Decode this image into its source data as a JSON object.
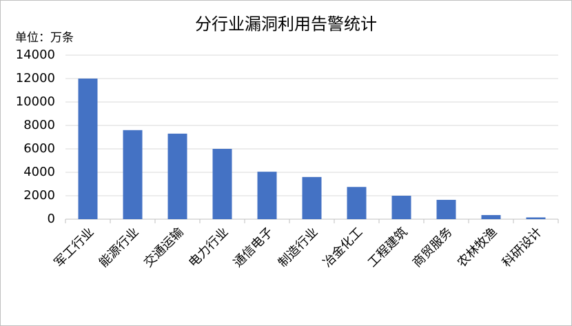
{
  "chart_data": {
    "type": "bar",
    "title": "分行业漏洞利用告警统计",
    "unit_label": "单位：万条",
    "categories": [
      "军工行业",
      "能源行业",
      "交通运输",
      "电力行业",
      "通信电子",
      "制造行业",
      "冶金化工",
      "工程建筑",
      "商贸服务",
      "农林牧渔",
      "科研设计"
    ],
    "values": [
      12000,
      7600,
      7300,
      6000,
      4050,
      3600,
      2750,
      2000,
      1650,
      350,
      150
    ],
    "color": "#4472c4",
    "ylim": [
      0,
      14000
    ],
    "yticks": [
      0,
      2000,
      4000,
      6000,
      8000,
      10000,
      12000,
      14000
    ],
    "grid": true
  }
}
